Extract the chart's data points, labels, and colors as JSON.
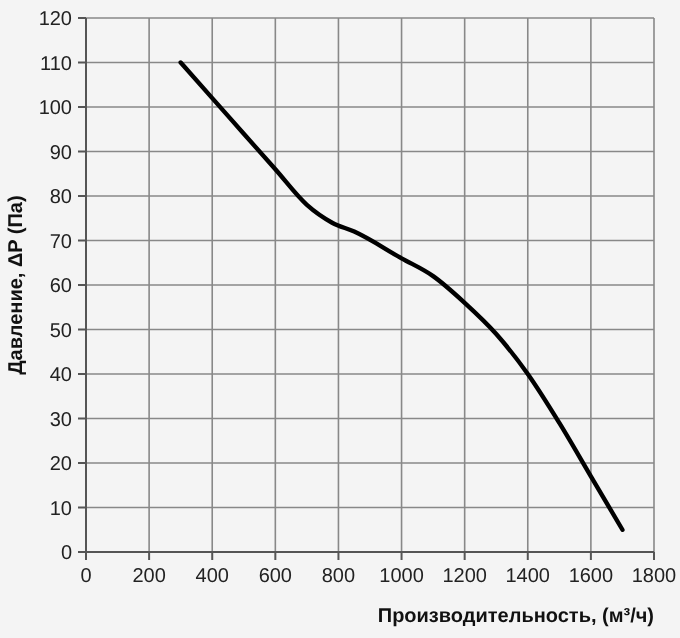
{
  "chart_data": {
    "type": "line",
    "xlabel": "Производительность, (м³/ч)",
    "ylabel": "Давление, ΔP (Па)",
    "x": [
      300,
      400,
      500,
      600,
      700,
      780,
      850,
      1000,
      1100,
      1200,
      1300,
      1400,
      1500,
      1600,
      1700
    ],
    "series": [
      {
        "color": "#000000",
        "values": [
          110,
          102,
          94,
          86,
          78,
          74,
          72,
          66,
          62,
          56,
          49,
          40,
          29,
          17,
          5
        ]
      }
    ],
    "xlim": [
      0,
      1800
    ],
    "xticks": [
      0,
      200,
      400,
      600,
      800,
      1000,
      1200,
      1400,
      1600,
      1800
    ],
    "ylim": [
      0,
      120
    ],
    "yticks": [
      0,
      10,
      20,
      30,
      40,
      50,
      60,
      70,
      80,
      90,
      100,
      110,
      120
    ],
    "grid": true,
    "marker": "none",
    "line_style": "solid"
  }
}
